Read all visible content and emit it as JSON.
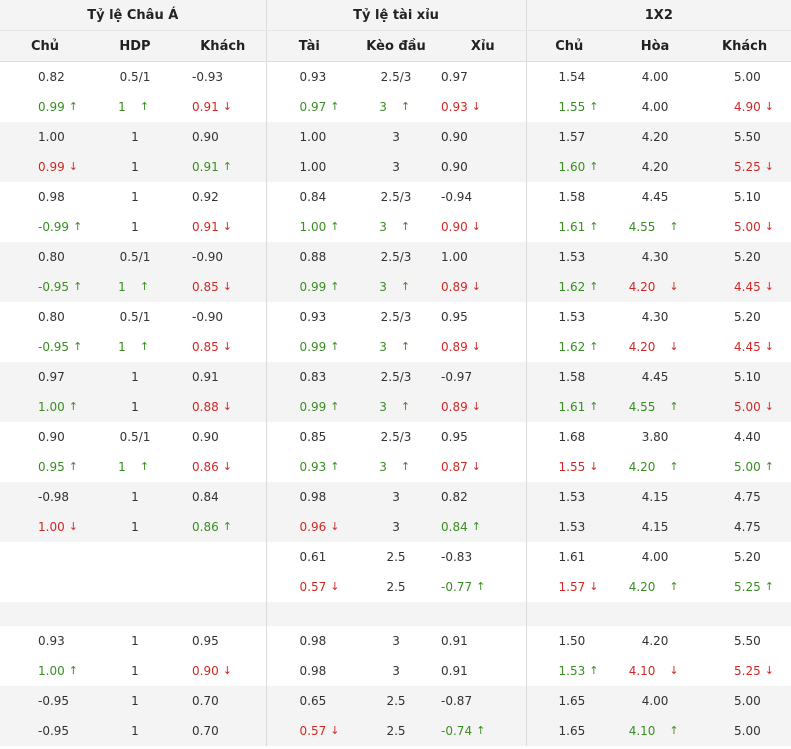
{
  "groups": [
    "Tỷ lệ Châu Á",
    "Tỷ lệ tài xỉu",
    "1X2"
  ],
  "columns": [
    "Chủ",
    "HDP",
    "Khách",
    "Tài",
    "Kèo đầu",
    "Xỉu",
    "Chủ",
    "Hòa",
    "Khách"
  ],
  "colors": {
    "up": "#3a8e24",
    "down": "#cf2a27",
    "grey_row": "#f4f4f4"
  },
  "icons": {
    "up": "arrow-up-icon ↑",
    "down": "arrow-down-icon ↓"
  },
  "rows": [
    {
      "bg": "white",
      "cells": [
        {
          "v": "0.82"
        },
        {
          "v": "0.5/1"
        },
        {
          "v": "-0.93"
        },
        {
          "v": "0.93"
        },
        {
          "v": "2.5/3"
        },
        {
          "v": "0.97"
        },
        {
          "v": "1.54"
        },
        {
          "v": "4.00"
        },
        {
          "v": "5.00"
        }
      ]
    },
    {
      "bg": "white",
      "cells": [
        {
          "v": "0.99",
          "d": "up"
        },
        {
          "v": "1",
          "d": "up"
        },
        {
          "v": "0.91",
          "d": "down"
        },
        {
          "v": "0.97",
          "d": "up"
        },
        {
          "v": "3",
          "d": "up"
        },
        {
          "v": "0.93",
          "d": "down"
        },
        {
          "v": "1.55",
          "d": "up"
        },
        {
          "v": "4.00"
        },
        {
          "v": "4.90",
          "d": "down"
        }
      ]
    },
    {
      "bg": "grey",
      "cells": [
        {
          "v": "1.00"
        },
        {
          "v": "1"
        },
        {
          "v": "0.90"
        },
        {
          "v": "1.00"
        },
        {
          "v": "3"
        },
        {
          "v": "0.90"
        },
        {
          "v": "1.57"
        },
        {
          "v": "4.20"
        },
        {
          "v": "5.50"
        }
      ]
    },
    {
      "bg": "grey",
      "cells": [
        {
          "v": "0.99",
          "d": "down"
        },
        {
          "v": "1"
        },
        {
          "v": "0.91",
          "d": "up"
        },
        {
          "v": "1.00"
        },
        {
          "v": "3"
        },
        {
          "v": "0.90"
        },
        {
          "v": "1.60",
          "d": "up"
        },
        {
          "v": "4.20"
        },
        {
          "v": "5.25",
          "d": "down"
        }
      ]
    },
    {
      "bg": "white",
      "cells": [
        {
          "v": "0.98"
        },
        {
          "v": "1"
        },
        {
          "v": "0.92"
        },
        {
          "v": "0.84"
        },
        {
          "v": "2.5/3"
        },
        {
          "v": "-0.94"
        },
        {
          "v": "1.58"
        },
        {
          "v": "4.45"
        },
        {
          "v": "5.10"
        }
      ]
    },
    {
      "bg": "white",
      "cells": [
        {
          "v": "-0.99",
          "d": "up"
        },
        {
          "v": "1"
        },
        {
          "v": "0.91",
          "d": "down"
        },
        {
          "v": "1.00",
          "d": "up"
        },
        {
          "v": "3",
          "d": "up"
        },
        {
          "v": "0.90",
          "d": "down"
        },
        {
          "v": "1.61",
          "d": "up"
        },
        {
          "v": "4.55",
          "d": "up"
        },
        {
          "v": "5.00",
          "d": "down"
        }
      ]
    },
    {
      "bg": "grey",
      "cells": [
        {
          "v": "0.80"
        },
        {
          "v": "0.5/1"
        },
        {
          "v": "-0.90"
        },
        {
          "v": "0.88"
        },
        {
          "v": "2.5/3"
        },
        {
          "v": "1.00"
        },
        {
          "v": "1.53"
        },
        {
          "v": "4.30"
        },
        {
          "v": "5.20"
        }
      ]
    },
    {
      "bg": "grey",
      "cells": [
        {
          "v": "-0.95",
          "d": "up"
        },
        {
          "v": "1",
          "d": "up"
        },
        {
          "v": "0.85",
          "d": "down"
        },
        {
          "v": "0.99",
          "d": "up"
        },
        {
          "v": "3",
          "d": "up"
        },
        {
          "v": "0.89",
          "d": "down"
        },
        {
          "v": "1.62",
          "d": "up"
        },
        {
          "v": "4.20",
          "d": "down"
        },
        {
          "v": "4.45",
          "d": "down"
        }
      ]
    },
    {
      "bg": "white",
      "cells": [
        {
          "v": "0.80"
        },
        {
          "v": "0.5/1"
        },
        {
          "v": "-0.90"
        },
        {
          "v": "0.93"
        },
        {
          "v": "2.5/3"
        },
        {
          "v": "0.95"
        },
        {
          "v": "1.53"
        },
        {
          "v": "4.30"
        },
        {
          "v": "5.20"
        }
      ]
    },
    {
      "bg": "white",
      "cells": [
        {
          "v": "-0.95",
          "d": "up"
        },
        {
          "v": "1",
          "d": "up"
        },
        {
          "v": "0.85",
          "d": "down"
        },
        {
          "v": "0.99",
          "d": "up"
        },
        {
          "v": "3",
          "d": "up"
        },
        {
          "v": "0.89",
          "d": "down"
        },
        {
          "v": "1.62",
          "d": "up"
        },
        {
          "v": "4.20",
          "d": "down"
        },
        {
          "v": "4.45",
          "d": "down"
        }
      ]
    },
    {
      "bg": "grey",
      "cells": [
        {
          "v": "0.97"
        },
        {
          "v": "1"
        },
        {
          "v": "0.91"
        },
        {
          "v": "0.83"
        },
        {
          "v": "2.5/3"
        },
        {
          "v": "-0.97"
        },
        {
          "v": "1.58"
        },
        {
          "v": "4.45"
        },
        {
          "v": "5.10"
        }
      ]
    },
    {
      "bg": "grey",
      "cells": [
        {
          "v": "1.00",
          "d": "up"
        },
        {
          "v": "1"
        },
        {
          "v": "0.88",
          "d": "down"
        },
        {
          "v": "0.99",
          "d": "up"
        },
        {
          "v": "3",
          "d": "up"
        },
        {
          "v": "0.89",
          "d": "down"
        },
        {
          "v": "1.61",
          "d": "up"
        },
        {
          "v": "4.55",
          "d": "up"
        },
        {
          "v": "5.00",
          "d": "down"
        }
      ]
    },
    {
      "bg": "white",
      "cells": [
        {
          "v": "0.90"
        },
        {
          "v": "0.5/1"
        },
        {
          "v": "0.90"
        },
        {
          "v": "0.85"
        },
        {
          "v": "2.5/3"
        },
        {
          "v": "0.95"
        },
        {
          "v": "1.68"
        },
        {
          "v": "3.80"
        },
        {
          "v": "4.40"
        }
      ]
    },
    {
      "bg": "white",
      "cells": [
        {
          "v": "0.95",
          "d": "up"
        },
        {
          "v": "1",
          "d": "up"
        },
        {
          "v": "0.86",
          "d": "down"
        },
        {
          "v": "0.93",
          "d": "up"
        },
        {
          "v": "3",
          "d": "up"
        },
        {
          "v": "0.87",
          "d": "down"
        },
        {
          "v": "1.55",
          "d": "down"
        },
        {
          "v": "4.20",
          "d": "up"
        },
        {
          "v": "5.00",
          "d": "up"
        }
      ]
    },
    {
      "bg": "grey",
      "cells": [
        {
          "v": "-0.98"
        },
        {
          "v": "1"
        },
        {
          "v": "0.84"
        },
        {
          "v": "0.98"
        },
        {
          "v": "3"
        },
        {
          "v": "0.82"
        },
        {
          "v": "1.53"
        },
        {
          "v": "4.15"
        },
        {
          "v": "4.75"
        }
      ]
    },
    {
      "bg": "grey",
      "cells": [
        {
          "v": "1.00",
          "d": "down"
        },
        {
          "v": "1"
        },
        {
          "v": "0.86",
          "d": "up"
        },
        {
          "v": "0.96",
          "d": "down"
        },
        {
          "v": "3"
        },
        {
          "v": "0.84",
          "d": "up"
        },
        {
          "v": "1.53"
        },
        {
          "v": "4.15"
        },
        {
          "v": "4.75"
        }
      ]
    },
    {
      "bg": "white",
      "cells": [
        {
          "v": ""
        },
        {
          "v": ""
        },
        {
          "v": ""
        },
        {
          "v": "0.61"
        },
        {
          "v": "2.5"
        },
        {
          "v": "-0.83"
        },
        {
          "v": "1.61"
        },
        {
          "v": "4.00"
        },
        {
          "v": "5.20"
        }
      ]
    },
    {
      "bg": "white",
      "cells": [
        {
          "v": ""
        },
        {
          "v": ""
        },
        {
          "v": ""
        },
        {
          "v": "0.57",
          "d": "down"
        },
        {
          "v": "2.5"
        },
        {
          "v": "-0.77",
          "d": "up"
        },
        {
          "v": "1.57",
          "d": "down"
        },
        {
          "v": "4.20",
          "d": "up"
        },
        {
          "v": "5.25",
          "d": "up"
        }
      ]
    },
    {
      "bg": "spacer",
      "cells": []
    },
    {
      "bg": "white",
      "cells": [
        {
          "v": "0.93"
        },
        {
          "v": "1"
        },
        {
          "v": "0.95"
        },
        {
          "v": "0.98"
        },
        {
          "v": "3"
        },
        {
          "v": "0.91"
        },
        {
          "v": "1.50"
        },
        {
          "v": "4.20"
        },
        {
          "v": "5.50"
        }
      ]
    },
    {
      "bg": "white",
      "cells": [
        {
          "v": "1.00",
          "d": "up"
        },
        {
          "v": "1"
        },
        {
          "v": "0.90",
          "d": "down"
        },
        {
          "v": "0.98"
        },
        {
          "v": "3"
        },
        {
          "v": "0.91"
        },
        {
          "v": "1.53",
          "d": "up"
        },
        {
          "v": "4.10",
          "d": "down"
        },
        {
          "v": "5.25",
          "d": "down"
        }
      ]
    },
    {
      "bg": "grey",
      "cells": [
        {
          "v": "-0.95"
        },
        {
          "v": "1"
        },
        {
          "v": "0.70"
        },
        {
          "v": "0.65"
        },
        {
          "v": "2.5"
        },
        {
          "v": "-0.87"
        },
        {
          "v": "1.65"
        },
        {
          "v": "4.00"
        },
        {
          "v": "5.00"
        }
      ]
    },
    {
      "bg": "grey",
      "cells": [
        {
          "v": "-0.95"
        },
        {
          "v": "1"
        },
        {
          "v": "0.70"
        },
        {
          "v": "0.57",
          "d": "down"
        },
        {
          "v": "2.5"
        },
        {
          "v": "-0.74",
          "d": "up"
        },
        {
          "v": "1.65"
        },
        {
          "v": "4.10",
          "d": "up"
        },
        {
          "v": "5.00"
        }
      ]
    }
  ]
}
